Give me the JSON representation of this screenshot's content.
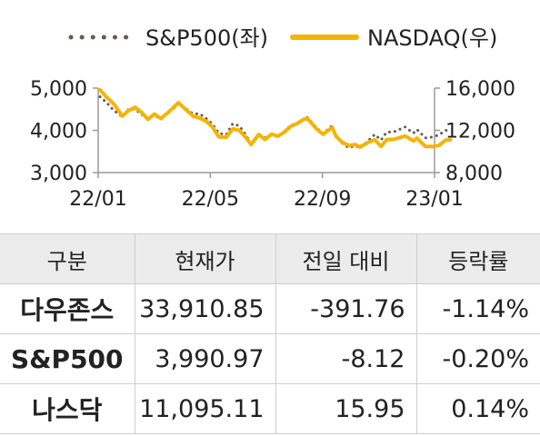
{
  "chart_data": {
    "type": "line",
    "legend": {
      "position": "top"
    },
    "x_ticks": [
      "22/01",
      "22/05",
      "22/09",
      "23/01"
    ],
    "y_left": {
      "ticks": [
        "3,000",
        "4,000",
        "5,000"
      ],
      "range": [
        3000,
        5000
      ]
    },
    "y_right": {
      "ticks": [
        "8,000",
        "12,000",
        "16,000"
      ],
      "range": [
        8000,
        16000
      ]
    },
    "grid": false,
    "series": [
      {
        "name": "S&P500(좌)",
        "axis": "left",
        "color": "#6b5a4e",
        "style": "dotted",
        "points": [
          [
            "2022-01-03",
            4796
          ],
          [
            "2022-01-10",
            4660
          ],
          [
            "2022-01-18",
            4470
          ],
          [
            "2022-01-27",
            4326
          ],
          [
            "2022-02-03",
            4500
          ],
          [
            "2022-02-10",
            4505
          ],
          [
            "2022-02-17",
            4380
          ],
          [
            "2022-02-24",
            4288
          ],
          [
            "2022-03-03",
            4363
          ],
          [
            "2022-03-10",
            4259
          ],
          [
            "2022-03-17",
            4411
          ],
          [
            "2022-03-24",
            4520
          ],
          [
            "2022-03-29",
            4631
          ],
          [
            "2022-04-07",
            4500
          ],
          [
            "2022-04-14",
            4392
          ],
          [
            "2022-04-21",
            4393
          ],
          [
            "2022-04-28",
            4287
          ],
          [
            "2022-05-05",
            4147
          ],
          [
            "2022-05-12",
            3930
          ],
          [
            "2022-05-20",
            3901
          ],
          [
            "2022-05-27",
            4158
          ],
          [
            "2022-06-03",
            4108
          ],
          [
            "2022-06-10",
            3900
          ],
          [
            "2022-06-16",
            3667
          ],
          [
            "2022-06-24",
            3912
          ],
          [
            "2022-07-01",
            3825
          ],
          [
            "2022-07-08",
            3899
          ],
          [
            "2022-07-15",
            3863
          ],
          [
            "2022-07-22",
            3962
          ],
          [
            "2022-07-29",
            4130
          ],
          [
            "2022-08-05",
            4145
          ],
          [
            "2022-08-12",
            4280
          ],
          [
            "2022-08-16",
            4305
          ],
          [
            "2022-08-26",
            4057
          ],
          [
            "2022-09-02",
            3924
          ],
          [
            "2022-09-12",
            4110
          ],
          [
            "2022-09-16",
            3873
          ],
          [
            "2022-09-23",
            3693
          ],
          [
            "2022-09-30",
            3586
          ],
          [
            "2022-10-07",
            3640
          ],
          [
            "2022-10-12",
            3577
          ],
          [
            "2022-10-21",
            3752
          ],
          [
            "2022-10-28",
            3901
          ],
          [
            "2022-11-04",
            3771
          ],
          [
            "2022-11-10",
            3956
          ],
          [
            "2022-11-18",
            3965
          ],
          [
            "2022-11-30",
            4080
          ],
          [
            "2022-12-09",
            3934
          ],
          [
            "2022-12-13",
            4019
          ],
          [
            "2022-12-22",
            3822
          ],
          [
            "2022-12-30",
            3840
          ],
          [
            "2023-01-06",
            3895
          ],
          [
            "2023-01-13",
            3999
          ],
          [
            "2023-01-18",
            3991
          ]
        ]
      },
      {
        "name": "NASDAQ(우)",
        "axis": "right",
        "color": "#f5b400",
        "style": "solid",
        "points": [
          [
            "2022-01-03",
            15833
          ],
          [
            "2022-01-10",
            15153
          ],
          [
            "2022-01-18",
            14507
          ],
          [
            "2022-01-27",
            13352
          ],
          [
            "2022-02-03",
            13878
          ],
          [
            "2022-02-10",
            14185
          ],
          [
            "2022-02-17",
            13717
          ],
          [
            "2022-02-24",
            13037
          ],
          [
            "2022-03-03",
            13538
          ],
          [
            "2022-03-10",
            13129
          ],
          [
            "2022-03-17",
            13614
          ],
          [
            "2022-03-24",
            14191
          ],
          [
            "2022-03-29",
            14619
          ],
          [
            "2022-04-07",
            13897
          ],
          [
            "2022-04-14",
            13351
          ],
          [
            "2022-04-21",
            13174
          ],
          [
            "2022-04-28",
            12871
          ],
          [
            "2022-05-05",
            12317
          ],
          [
            "2022-05-12",
            11371
          ],
          [
            "2022-05-20",
            11355
          ],
          [
            "2022-05-27",
            12131
          ],
          [
            "2022-06-03",
            12012
          ],
          [
            "2022-06-10",
            11340
          ],
          [
            "2022-06-16",
            10646
          ],
          [
            "2022-06-24",
            11607
          ],
          [
            "2022-07-01",
            11128
          ],
          [
            "2022-07-08",
            11635
          ],
          [
            "2022-07-15",
            11452
          ],
          [
            "2022-07-22",
            11834
          ],
          [
            "2022-07-29",
            12391
          ],
          [
            "2022-08-05",
            12657
          ],
          [
            "2022-08-12",
            13047
          ],
          [
            "2022-08-16",
            13128
          ],
          [
            "2022-08-26",
            12141
          ],
          [
            "2022-09-02",
            11631
          ],
          [
            "2022-09-12",
            12266
          ],
          [
            "2022-09-16",
            11448
          ],
          [
            "2022-09-23",
            10868
          ],
          [
            "2022-09-30",
            10576
          ],
          [
            "2022-10-07",
            10652
          ],
          [
            "2022-10-12",
            10417
          ],
          [
            "2022-10-21",
            10859
          ],
          [
            "2022-10-28",
            11102
          ],
          [
            "2022-11-04",
            10475
          ],
          [
            "2022-11-10",
            11114
          ],
          [
            "2022-11-18",
            11146
          ],
          [
            "2022-11-30",
            11468
          ],
          [
            "2022-12-09",
            11005
          ],
          [
            "2022-12-13",
            11256
          ],
          [
            "2022-12-22",
            10477
          ],
          [
            "2022-12-30",
            10466
          ],
          [
            "2023-01-06",
            10569
          ],
          [
            "2023-01-13",
            11079
          ],
          [
            "2023-01-18",
            11095
          ]
        ]
      }
    ]
  },
  "table": {
    "headers": [
      "구분",
      "현재가",
      "전일 대비",
      "등락률"
    ],
    "rows": [
      {
        "name": "다우존스",
        "price": "33,910.85",
        "change": "-391.76",
        "rate": "-1.14%"
      },
      {
        "name": "S&P500",
        "price": "3,990.97",
        "change": "-8.12",
        "rate": "-0.20%"
      },
      {
        "name": "나스닥",
        "price": "11,095.11",
        "change": "15.95",
        "rate": "0.14%"
      }
    ]
  }
}
